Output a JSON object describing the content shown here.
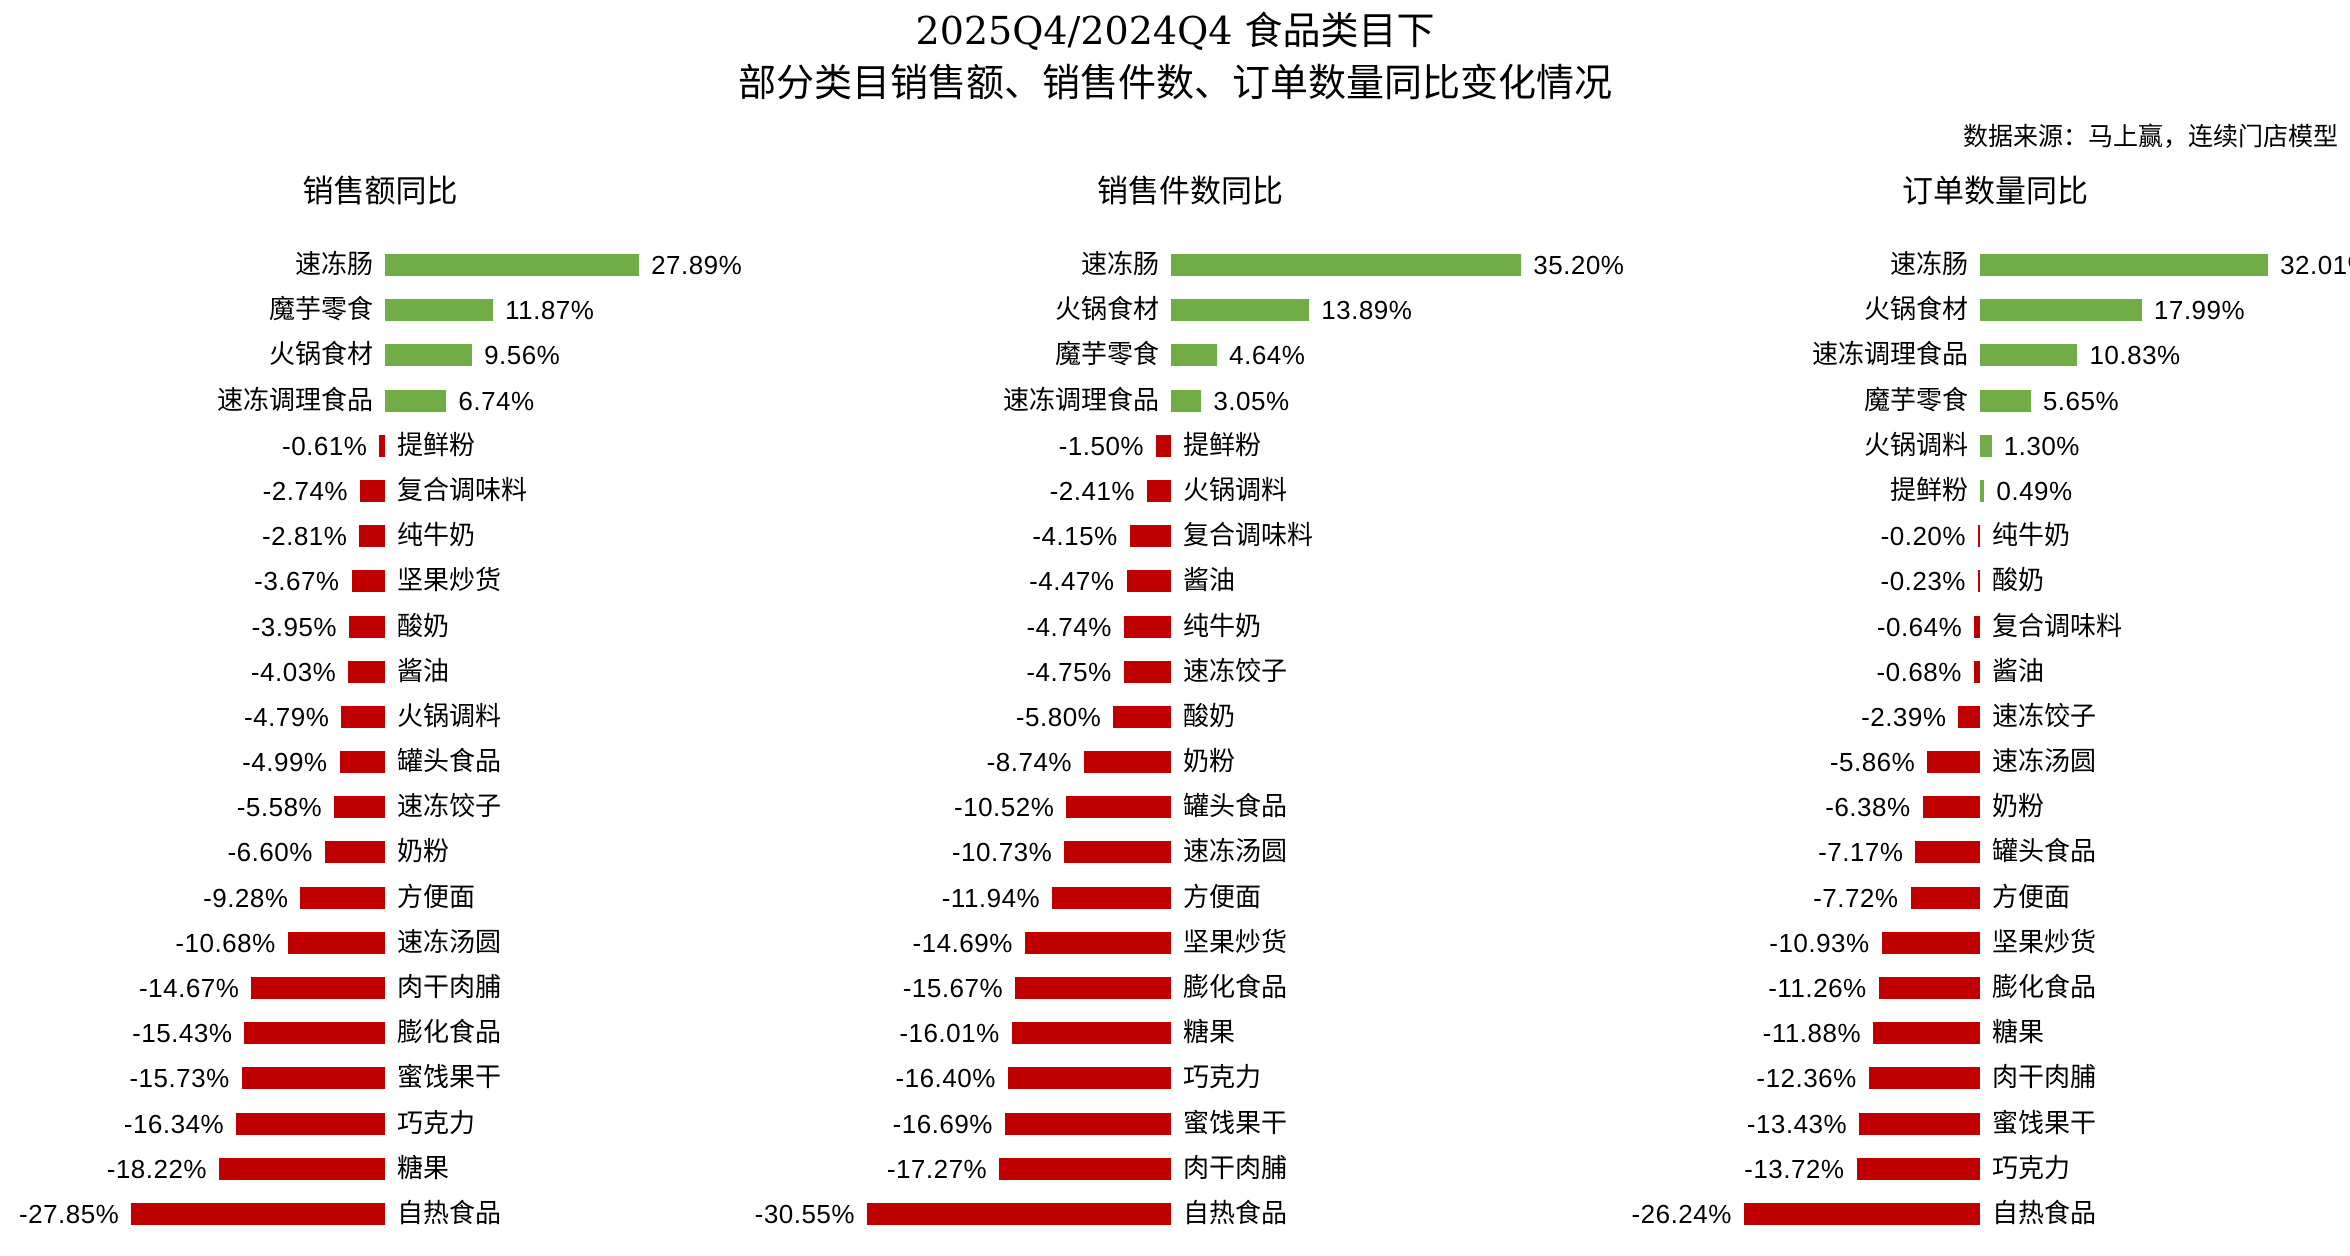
{
  "title": {
    "line1": "2025Q4/2024Q4 食品类目下",
    "line2": "部分类目销售额、销售件数、订单数量同比变化情况"
  },
  "source_note": "数据来源：马上赢，连续门店模型",
  "colors": {
    "positive_bar": "#70AD47",
    "negative_bar": "#C00000",
    "text": "#000000",
    "background": "#FFFFFF"
  },
  "value_suffix": "%",
  "chart_data": [
    {
      "type": "bar",
      "orientation": "horizontal",
      "title": "销售额同比",
      "grid": false,
      "legend": false,
      "xlim": [
        -30,
        30
      ],
      "value_format": "0.00%",
      "categories": [
        "速冻肠",
        "魔芋零食",
        "火锅食材",
        "速冻调理食品",
        "提鲜粉",
        "复合调味料",
        "纯牛奶",
        "坚果炒货",
        "酸奶",
        "酱油",
        "火锅调料",
        "罐头食品",
        "速冻饺子",
        "奶粉",
        "方便面",
        "速冻汤圆",
        "肉干肉脯",
        "膨化食品",
        "蜜饯果干",
        "巧克力",
        "糖果",
        "自热食品"
      ],
      "values": [
        27.89,
        11.87,
        9.56,
        6.74,
        -0.61,
        -2.74,
        -2.81,
        -3.67,
        -3.95,
        -4.03,
        -4.79,
        -4.99,
        -5.58,
        -6.6,
        -9.28,
        -10.68,
        -14.67,
        -15.43,
        -15.73,
        -16.34,
        -18.22,
        -27.85
      ]
    },
    {
      "type": "bar",
      "orientation": "horizontal",
      "title": "销售件数同比",
      "grid": false,
      "legend": false,
      "xlim": [
        -33,
        38
      ],
      "value_format": "0.00%",
      "categories": [
        "速冻肠",
        "火锅食材",
        "魔芋零食",
        "速冻调理食品",
        "提鲜粉",
        "火锅调料",
        "复合调味料",
        "酱油",
        "纯牛奶",
        "速冻饺子",
        "酸奶",
        "奶粉",
        "罐头食品",
        "速冻汤圆",
        "方便面",
        "坚果炒货",
        "膨化食品",
        "糖果",
        "巧克力",
        "蜜饯果干",
        "肉干肉脯",
        "自热食品"
      ],
      "values": [
        35.2,
        13.89,
        4.64,
        3.05,
        -1.5,
        -2.41,
        -4.15,
        -4.47,
        -4.74,
        -4.75,
        -5.8,
        -8.74,
        -10.52,
        -10.73,
        -11.94,
        -14.69,
        -15.67,
        -16.01,
        -16.4,
        -16.69,
        -17.27,
        -30.55
      ]
    },
    {
      "type": "bar",
      "orientation": "horizontal",
      "title": "订单数量同比",
      "grid": false,
      "legend": false,
      "xlim": [
        -29,
        35
      ],
      "value_format": "0.00%",
      "categories": [
        "速冻肠",
        "火锅食材",
        "速冻调理食品",
        "魔芋零食",
        "火锅调料",
        "提鲜粉",
        "纯牛奶",
        "酸奶",
        "复合调味料",
        "酱油",
        "速冻饺子",
        "速冻汤圆",
        "奶粉",
        "罐头食品",
        "方便面",
        "坚果炒货",
        "膨化食品",
        "糖果",
        "肉干肉脯",
        "蜜饯果干",
        "巧克力",
        "自热食品"
      ],
      "values": [
        32.01,
        17.99,
        10.83,
        5.65,
        1.3,
        0.49,
        -0.2,
        -0.23,
        -0.64,
        -0.68,
        -2.39,
        -5.86,
        -6.38,
        -7.17,
        -7.72,
        -10.93,
        -11.26,
        -11.88,
        -12.36,
        -13.43,
        -13.72,
        -26.24
      ]
    }
  ]
}
